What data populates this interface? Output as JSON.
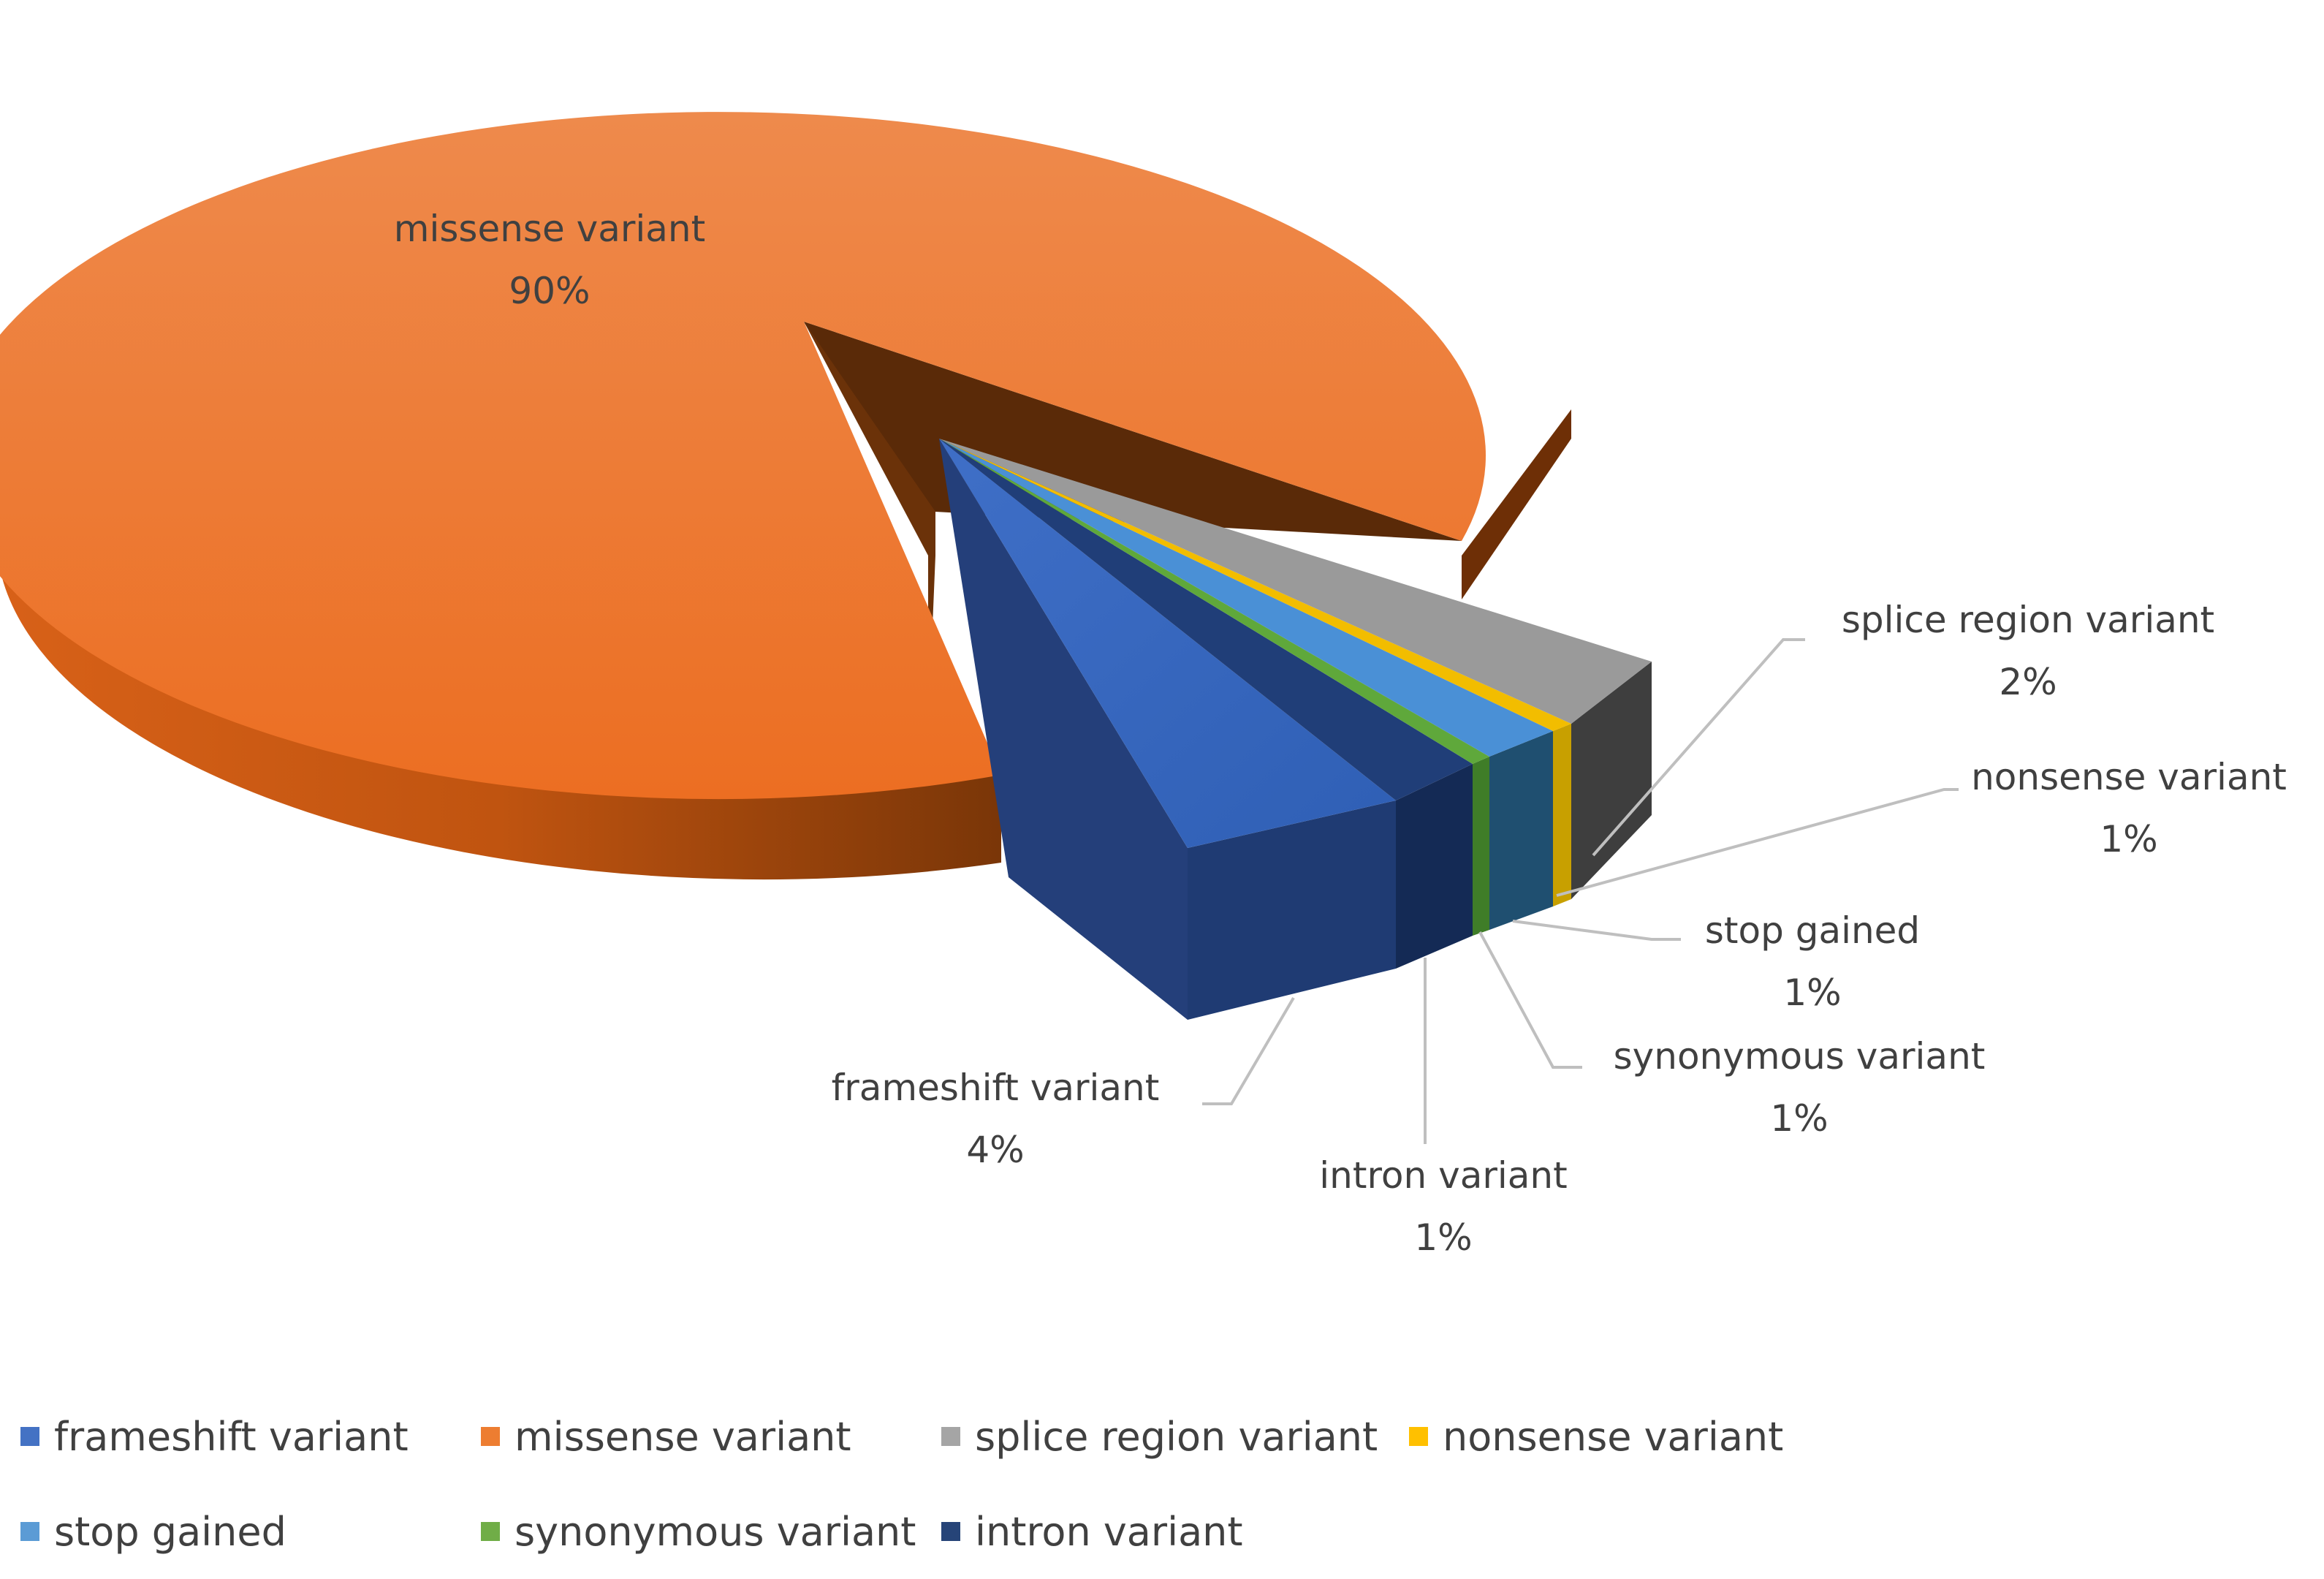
{
  "chart_data": {
    "type": "pie",
    "style": "3d-exploded",
    "legend_position": "bottom",
    "slices": [
      {
        "name": "frameshift variant",
        "label": "frameshift variant",
        "percent_label": "4%",
        "value": 4,
        "color": "#4472C4"
      },
      {
        "name": "missense variant",
        "label": "missense variant",
        "percent_label": "90%",
        "value": 90,
        "color": "#ED7D31"
      },
      {
        "name": "splice region variant",
        "label": "splice region variant",
        "percent_label": "2%",
        "value": 2,
        "color": "#A5A5A5"
      },
      {
        "name": "nonsense variant",
        "label": "nonsense variant",
        "percent_label": "1%",
        "value": 1,
        "color": "#FFC000"
      },
      {
        "name": "stop gained",
        "label": "stop gained",
        "percent_label": "1%",
        "value": 1,
        "color": "#5B9BD5"
      },
      {
        "name": "synonymous variant",
        "label": "synonymous variant",
        "percent_label": "1%",
        "value": 1,
        "color": "#70AD47"
      },
      {
        "name": "intron variant",
        "label": "intron variant",
        "percent_label": "1%",
        "value": 1,
        "color": "#264478"
      }
    ],
    "legend": [
      {
        "label": "frameshift variant",
        "color": "#4472C4"
      },
      {
        "label": "missense variant",
        "color": "#ED7D31"
      },
      {
        "label": "splice region variant",
        "color": "#A5A5A5"
      },
      {
        "label": "nonsense variant",
        "color": "#FFC000"
      },
      {
        "label": "stop gained",
        "color": "#5B9BD5"
      },
      {
        "label": "synonymous variant",
        "color": "#70AD47"
      },
      {
        "label": "intron variant",
        "color": "#264478"
      }
    ]
  }
}
